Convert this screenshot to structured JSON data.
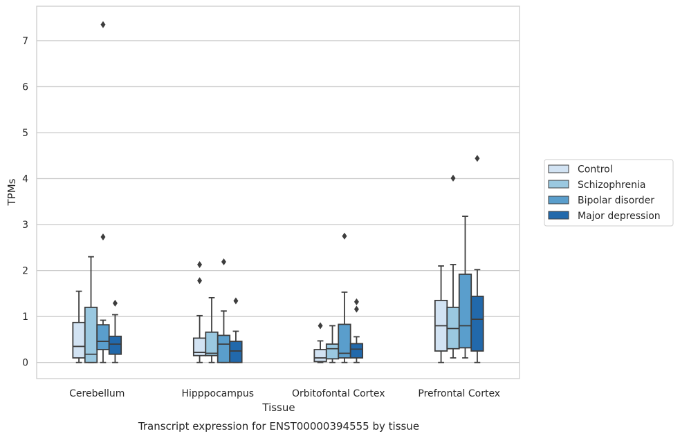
{
  "chart_data": {
    "type": "box",
    "caption": "Transcript expression for ENST00000394555 by tissue",
    "xlabel": "Tissue",
    "ylabel": "TPMs",
    "ylim": [
      -0.35,
      7.75
    ],
    "yticks": [
      0,
      1,
      2,
      3,
      4,
      5,
      6,
      7
    ],
    "grid": "horizontal",
    "legend_position": "right",
    "categories": [
      "Cerebellum",
      "Hipppocampus",
      "Orbitofontal Cortex",
      "Prefrontal Cortex"
    ],
    "series": [
      {
        "name": "Control",
        "color": "#d2e3f3",
        "boxes": [
          {
            "whislo": 0.0,
            "q1": 0.1,
            "med": 0.35,
            "q3": 0.87,
            "whishi": 1.55,
            "fliers": []
          },
          {
            "whislo": 0.0,
            "q1": 0.15,
            "med": 0.22,
            "q3": 0.53,
            "whishi": 1.02,
            "fliers": [
              1.78,
              2.13
            ]
          },
          {
            "whislo": 0.0,
            "q1": 0.02,
            "med": 0.1,
            "q3": 0.28,
            "whishi": 0.47,
            "fliers": [
              0.8
            ]
          },
          {
            "whislo": 0.0,
            "q1": 0.25,
            "med": 0.8,
            "q3": 1.35,
            "whishi": 2.1,
            "fliers": []
          }
        ]
      },
      {
        "name": "Schizophrenia",
        "color": "#9ac8e0",
        "boxes": [
          {
            "whislo": 0.0,
            "q1": 0.0,
            "med": 0.18,
            "q3": 1.2,
            "whishi": 2.3,
            "fliers": []
          },
          {
            "whislo": 0.0,
            "q1": 0.15,
            "med": 0.2,
            "q3": 0.66,
            "whishi": 1.41,
            "fliers": []
          },
          {
            "whislo": 0.0,
            "q1": 0.08,
            "med": 0.3,
            "q3": 0.4,
            "whishi": 0.8,
            "fliers": []
          },
          {
            "whislo": 0.1,
            "q1": 0.3,
            "med": 0.74,
            "q3": 1.2,
            "whishi": 2.13,
            "fliers": [
              4.01
            ]
          }
        ]
      },
      {
        "name": "Bipolar disorder",
        "color": "#5a9ecc",
        "boxes": [
          {
            "whislo": 0.0,
            "q1": 0.28,
            "med": 0.46,
            "q3": 0.82,
            "whishi": 0.92,
            "fliers": [
              2.73,
              7.35
            ]
          },
          {
            "whislo": 0.0,
            "q1": 0.0,
            "med": 0.4,
            "q3": 0.59,
            "whishi": 1.12,
            "fliers": [
              2.19
            ]
          },
          {
            "whislo": 0.0,
            "q1": 0.1,
            "med": 0.2,
            "q3": 0.83,
            "whishi": 1.53,
            "fliers": [
              2.75
            ]
          },
          {
            "whislo": 0.1,
            "q1": 0.32,
            "med": 0.8,
            "q3": 1.92,
            "whishi": 3.18,
            "fliers": []
          }
        ]
      },
      {
        "name": "Major depression",
        "color": "#2269ab",
        "boxes": [
          {
            "whislo": 0.0,
            "q1": 0.18,
            "med": 0.4,
            "q3": 0.57,
            "whishi": 1.04,
            "fliers": [
              1.29
            ]
          },
          {
            "whislo": 0.0,
            "q1": 0.0,
            "med": 0.25,
            "q3": 0.46,
            "whishi": 0.68,
            "fliers": [
              1.34
            ]
          },
          {
            "whislo": 0.0,
            "q1": 0.1,
            "med": 0.29,
            "q3": 0.41,
            "whishi": 0.56,
            "fliers": [
              1.16,
              1.32
            ]
          },
          {
            "whislo": 0.0,
            "q1": 0.25,
            "med": 0.94,
            "q3": 1.44,
            "whishi": 2.02,
            "fliers": [
              4.44
            ]
          }
        ]
      }
    ]
  }
}
